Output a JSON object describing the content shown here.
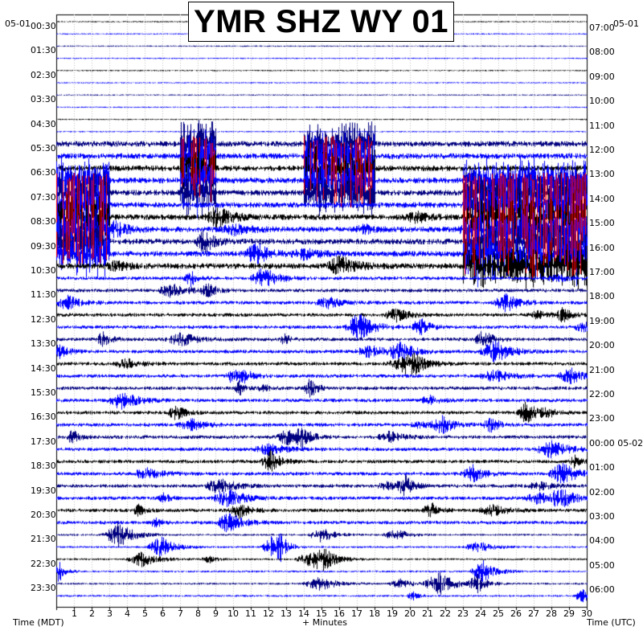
{
  "title": "YMR SHZ WY 01",
  "date_left": "05-01",
  "date_right": "05-01",
  "xlabel_left": "Time (MDT)",
  "xlabel_center": "+ Minutes",
  "xlabel_right": "Time (UTC)",
  "colors": {
    "trace_dark": "#000080",
    "trace_black": "#000000",
    "trace_blue": "#0000ff",
    "clipped": "#ff0000",
    "grid": "#c0c0c0"
  },
  "chart_data": {
    "type": "helicorder",
    "title": "YMR SHZ WY 01",
    "xlabel": "+ Minutes",
    "xlim": [
      0,
      30
    ],
    "x_ticks": [
      "1",
      "2",
      "3",
      "4",
      "5",
      "6",
      "7",
      "8",
      "9",
      "10",
      "11",
      "12",
      "13",
      "14",
      "15",
      "16",
      "17",
      "18",
      "19",
      "20",
      "21",
      "22",
      "23",
      "24",
      "25",
      "26",
      "27",
      "28",
      "29",
      "30"
    ],
    "left_time_labels": [
      "00:30",
      "01:30",
      "02:30",
      "03:30",
      "04:30",
      "05:30",
      "06:30",
      "07:30",
      "08:30",
      "09:30",
      "10:30",
      "11:30",
      "12:30",
      "13:30",
      "14:30",
      "15:30",
      "16:30",
      "17:30",
      "18:30",
      "19:30",
      "20:30",
      "21:30",
      "22:30",
      "23:30"
    ],
    "right_time_labels": [
      "07:00",
      "08:00",
      "09:00",
      "10:00",
      "11:00",
      "12:00",
      "13:00",
      "14:00",
      "15:00",
      "16:00",
      "17:00",
      "18:00",
      "19:00",
      "20:00",
      "21:00",
      "22:00",
      "23:00",
      "00:00 05-02",
      "01:00",
      "02:00",
      "03:00",
      "04:00",
      "05:00",
      "06:00"
    ],
    "rows_per_hour": 2,
    "minutes_per_row": 30,
    "row_colors_cycle": [
      "#000000",
      "#ff0000",
      "#0000ff",
      "#000080"
    ],
    "clipped_segments": [
      {
        "start_row": 10,
        "end_row": 14,
        "x_start_min": 7.0,
        "x_end_min": 9.0
      },
      {
        "start_row": 10,
        "end_row": 14,
        "x_start_min": 14.0,
        "x_end_min": 18.0
      },
      {
        "start_row": 13,
        "end_row": 19,
        "x_start_min": 0.0,
        "x_end_min": 3.0
      },
      {
        "start_row": 13,
        "end_row": 20,
        "x_start_min": 23.0,
        "x_end_min": 30.0
      }
    ]
  }
}
